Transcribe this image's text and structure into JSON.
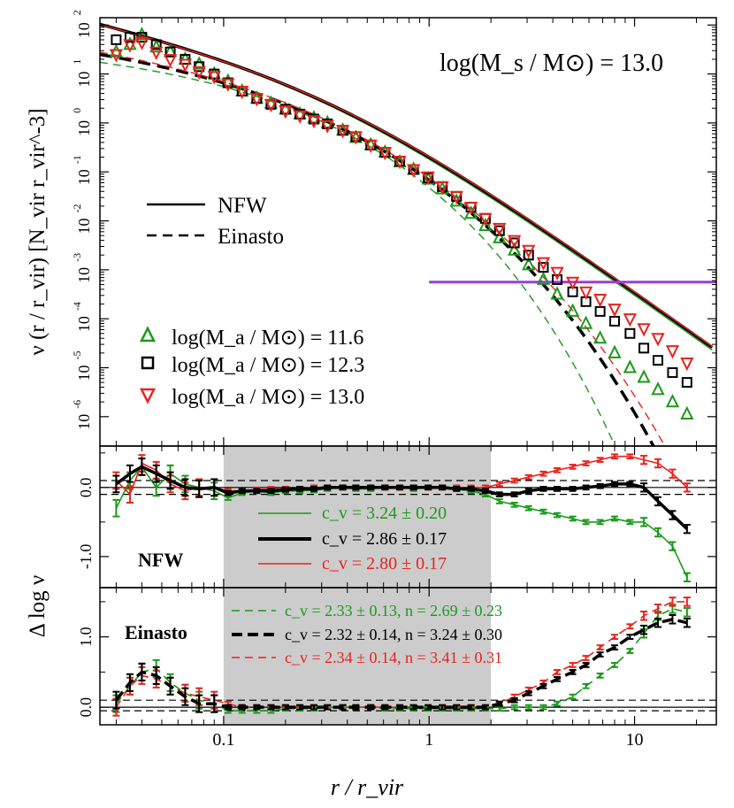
{
  "chart_data": {
    "type": "line",
    "xlabel": "r / r_vir",
    "x_ticks": [
      "0.1",
      "1",
      "10"
    ],
    "xlim": [
      0.025,
      25
    ],
    "panels": {
      "top": {
        "ylabel": "ν (r / r_vir)  [N_vir  r_vir^-3]",
        "annotation": "log(M_s / M⊙) = 13.0",
        "ylim_log10": [
          -6.6,
          2.15
        ],
        "y_ticks_exp": [
          "2",
          "1",
          "0",
          "-1",
          "-2",
          "-3",
          "-4",
          "-5",
          "-6"
        ],
        "threshold_log10": -3.25,
        "threshold_x_from": 1.0,
        "line_legend": [
          {
            "label": "NFW",
            "style": "solid"
          },
          {
            "label": "Einasto",
            "style": "dashed"
          }
        ],
        "marker_legend": [
          {
            "label": "log(M_a / M⊙) = 11.6",
            "marker": "triangle-up",
            "color": "#1a9a1a"
          },
          {
            "label": "log(M_a / M⊙) = 12.3",
            "marker": "square",
            "color": "#000000"
          },
          {
            "label": "log(M_a / M⊙) = 13.0",
            "marker": "triangle-down",
            "color": "#e8231e"
          }
        ],
        "x": [
          0.03,
          0.035,
          0.04,
          0.047,
          0.055,
          0.065,
          0.076,
          0.09,
          0.105,
          0.123,
          0.145,
          0.17,
          0.2,
          0.235,
          0.275,
          0.32,
          0.38,
          0.44,
          0.52,
          0.61,
          0.72,
          0.84,
          0.99,
          1.16,
          1.36,
          1.6,
          1.88,
          2.2,
          2.6,
          3.05,
          3.6,
          4.2,
          5.0,
          5.8,
          6.8,
          8.0,
          9.5,
          11.1,
          13.0,
          15.3,
          18.0
        ],
        "series": [
          {
            "name": "11.6",
            "values": [
              1.45,
              1.6,
              1.8,
              1.55,
              1.45,
              1.3,
              1.2,
              1.0,
              0.85,
              0.65,
              0.5,
              0.4,
              0.28,
              0.18,
              0.1,
              0.0,
              -0.15,
              -0.3,
              -0.45,
              -0.6,
              -0.8,
              -0.95,
              -1.15,
              -1.35,
              -1.6,
              -1.85,
              -2.1,
              -2.35,
              -2.6,
              -2.9,
              -3.2,
              -3.5,
              -3.85,
              -4.1,
              -4.4,
              -4.7,
              -5.0,
              -5.2,
              -5.45,
              -5.7,
              -5.95
            ]
          },
          {
            "name": "12.3",
            "values": [
              1.7,
              1.75,
              1.75,
              1.6,
              1.45,
              1.3,
              1.15,
              1.0,
              0.82,
              0.65,
              0.5,
              0.38,
              0.28,
              0.18,
              0.08,
              -0.02,
              -0.15,
              -0.28,
              -0.45,
              -0.6,
              -0.78,
              -0.95,
              -1.12,
              -1.3,
              -1.5,
              -1.72,
              -1.95,
              -2.2,
              -2.45,
              -2.7,
              -2.95,
              -3.2,
              -3.45,
              -3.65,
              -3.85,
              -4.05,
              -4.3,
              -4.6,
              -4.85,
              -5.1,
              -5.3
            ]
          },
          {
            "name": "13.0",
            "values": [
              1.4,
              1.6,
              1.65,
              1.45,
              1.3,
              1.2,
              1.05,
              0.95,
              0.8,
              0.65,
              0.5,
              0.38,
              0.25,
              0.15,
              0.05,
              -0.05,
              -0.15,
              -0.28,
              -0.45,
              -0.6,
              -0.78,
              -0.95,
              -1.1,
              -1.3,
              -1.5,
              -1.72,
              -1.95,
              -2.15,
              -2.4,
              -2.6,
              -2.85,
              -3.05,
              -3.25,
              -3.45,
              -3.6,
              -3.8,
              -4.0,
              -4.2,
              -4.4,
              -4.65,
              -4.9
            ]
          }
        ],
        "model_curves_log10": {
          "nfw": {
            "rs": 0.35,
            "norm": 0.55
          },
          "einasto": {
            "rs": 0.43,
            "norm_at_rs": -0.25
          }
        }
      },
      "middle": {
        "label": "NFW",
        "ylim": [
          -1.45,
          0.6
        ],
        "y_ticks": [
          "0.0",
          "-1.0"
        ],
        "band": [
          -0.1,
          0.1
        ],
        "shaded_x": [
          0.1,
          2.0
        ],
        "fit_legend": [
          {
            "label": "c_v = 3.24 ± 0.20",
            "color": "#1a9a1a"
          },
          {
            "label": "c_v = 2.86 ± 0.17",
            "color": "#000000"
          },
          {
            "label": "c_v = 2.80 ± 0.17",
            "color": "#e8231e"
          }
        ],
        "x": [
          0.03,
          0.035,
          0.04,
          0.047,
          0.055,
          0.065,
          0.076,
          0.09,
          0.105,
          0.123,
          0.145,
          0.17,
          0.2,
          0.235,
          0.275,
          0.32,
          0.38,
          0.44,
          0.52,
          0.61,
          0.72,
          0.84,
          0.99,
          1.16,
          1.36,
          1.6,
          1.88,
          2.2,
          2.6,
          3.05,
          3.6,
          4.2,
          5.0,
          5.8,
          6.8,
          8.0,
          9.5,
          11.1,
          13.0,
          15.3,
          18.0
        ],
        "series": [
          {
            "name": "11.6",
            "values": [
              -0.3,
              0.1,
              0.3,
              0.0,
              0.2,
              0.05,
              0.0,
              -0.05,
              -0.15,
              -0.08,
              -0.05,
              -0.08,
              -0.05,
              -0.05,
              -0.04,
              -0.02,
              0.0,
              -0.02,
              -0.02,
              0.0,
              0.0,
              -0.02,
              0.0,
              0.0,
              -0.02,
              -0.05,
              -0.1,
              -0.2,
              -0.25,
              -0.3,
              -0.35,
              -0.4,
              -0.45,
              -0.5,
              -0.5,
              -0.45,
              -0.5,
              -0.5,
              -0.65,
              -0.85,
              -1.3
            ]
          },
          {
            "name": "12.3",
            "values": [
              0.05,
              0.2,
              0.3,
              0.2,
              0.1,
              0.0,
              -0.02,
              0.0,
              -0.08,
              -0.05,
              -0.05,
              -0.05,
              -0.03,
              -0.02,
              -0.02,
              0.0,
              0.0,
              0.0,
              0.0,
              0.0,
              0.0,
              0.0,
              0.0,
              0.0,
              -0.02,
              -0.02,
              -0.05,
              -0.1,
              -0.1,
              -0.05,
              -0.02,
              -0.02,
              -0.02,
              0.0,
              0.02,
              0.05,
              0.05,
              0.0,
              -0.2,
              -0.4,
              -0.6
            ]
          },
          {
            "name": "13.0",
            "values": [
              0.1,
              -0.1,
              0.35,
              0.25,
              0.05,
              -0.05,
              0.0,
              0.0,
              -0.05,
              -0.05,
              -0.03,
              -0.02,
              -0.02,
              -0.02,
              0.0,
              0.0,
              0.0,
              0.0,
              0.0,
              0.0,
              0.0,
              0.0,
              0.0,
              0.0,
              0.0,
              0.0,
              0.0,
              0.05,
              0.1,
              0.15,
              0.2,
              0.25,
              0.3,
              0.35,
              0.4,
              0.45,
              0.45,
              0.4,
              0.35,
              0.2,
              0.0
            ]
          }
        ]
      },
      "bottom": {
        "label": "Einasto",
        "ylabel": "Δ log ν",
        "ylim": [
          -0.25,
          1.7
        ],
        "y_ticks": [
          "1.0",
          "0.0"
        ],
        "band": [
          -0.05,
          0.1
        ],
        "shaded_x": [
          0.1,
          2.0
        ],
        "fit_legend": [
          {
            "label": "c_v = 2.33 ± 0.13, n = 2.69 ± 0.23",
            "color": "#1a9a1a"
          },
          {
            "label": "c_v = 2.32 ± 0.14, n = 3.24 ± 0.30",
            "color": "#000000"
          },
          {
            "label": "c_v = 2.34 ± 0.14, n = 3.41 ± 0.31",
            "color": "#e8231e"
          }
        ],
        "x": [
          0.03,
          0.035,
          0.04,
          0.047,
          0.055,
          0.065,
          0.076,
          0.09,
          0.105,
          0.123,
          0.145,
          0.17,
          0.2,
          0.235,
          0.275,
          0.32,
          0.38,
          0.44,
          0.52,
          0.61,
          0.72,
          0.84,
          0.99,
          1.16,
          1.36,
          1.6,
          1.88,
          2.2,
          2.6,
          3.05,
          3.6,
          4.2,
          5.0,
          5.8,
          6.8,
          8.0,
          9.5,
          11.1,
          13.0,
          15.3,
          18.0
        ],
        "series": [
          {
            "name": "11.6",
            "values": [
              0.05,
              0.3,
              0.5,
              0.55,
              0.35,
              0.2,
              0.1,
              0.05,
              -0.05,
              -0.05,
              -0.05,
              -0.05,
              -0.02,
              -0.02,
              -0.02,
              0.0,
              0.0,
              0.0,
              0.0,
              -0.02,
              -0.02,
              -0.02,
              -0.02,
              -0.02,
              -0.02,
              -0.02,
              -0.02,
              -0.02,
              0.0,
              0.0,
              0.0,
              0.05,
              0.15,
              0.3,
              0.45,
              0.6,
              0.8,
              1.05,
              1.3,
              1.4,
              1.35
            ]
          },
          {
            "name": "12.3",
            "values": [
              0.1,
              0.35,
              0.5,
              0.45,
              0.3,
              0.15,
              0.05,
              0.05,
              0.0,
              0.0,
              0.0,
              0.0,
              0.0,
              0.0,
              0.0,
              0.0,
              0.0,
              0.0,
              0.0,
              0.0,
              0.0,
              0.0,
              0.0,
              0.0,
              0.0,
              0.0,
              0.0,
              0.05,
              0.1,
              0.2,
              0.3,
              0.4,
              0.5,
              0.6,
              0.75,
              0.85,
              1.0,
              1.1,
              1.2,
              1.25,
              1.2
            ]
          },
          {
            "name": "13.0",
            "values": [
              0.0,
              0.3,
              0.45,
              0.4,
              0.3,
              0.2,
              0.15,
              0.1,
              0.05,
              0.0,
              0.0,
              0.0,
              0.0,
              0.0,
              0.0,
              0.0,
              0.0,
              0.0,
              0.0,
              0.0,
              0.0,
              0.0,
              0.0,
              0.0,
              0.0,
              0.0,
              0.0,
              0.05,
              0.15,
              0.25,
              0.35,
              0.5,
              0.6,
              0.7,
              0.85,
              1.0,
              1.15,
              1.3,
              1.4,
              1.5,
              1.5
            ]
          }
        ]
      }
    }
  }
}
